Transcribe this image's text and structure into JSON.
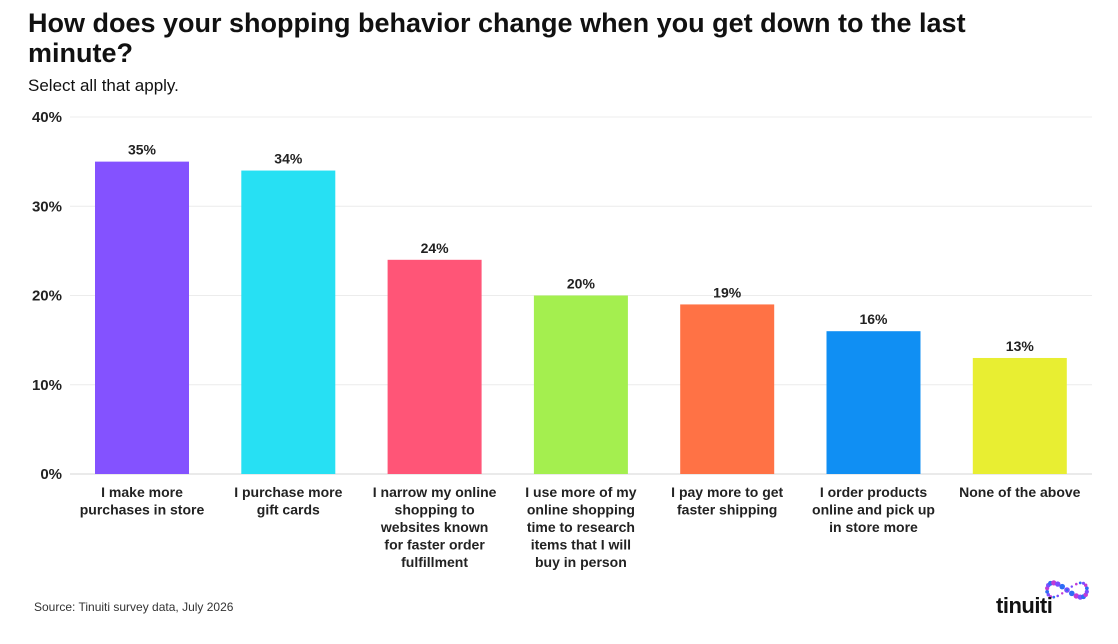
{
  "title": "How does your shopping behavior change when you get down to the last minute?",
  "subtitle": "Select all that apply.",
  "source": "Source: Tinuiti survey data, July 2026",
  "brand": {
    "wordmark": "tinuiti",
    "logo_icon": "dotted-infinity-logo-icon",
    "logo_colors": [
      "#7b4dff",
      "#2d6cf5",
      "#c13bd6"
    ]
  },
  "chart_data": {
    "type": "bar",
    "ylim": [
      0,
      40
    ],
    "y_ticks": [
      0,
      10,
      20,
      30,
      40
    ],
    "y_tick_labels": [
      "0%",
      "10%",
      "20%",
      "30%",
      "40%"
    ],
    "grid": true,
    "categories": [
      [
        "I make more",
        "purchases in store"
      ],
      [
        "I purchase more",
        "gift cards"
      ],
      [
        "I narrow my online",
        "shopping to",
        "websites known",
        "for faster order",
        "fulfillment"
      ],
      [
        "I use more of my",
        "online shopping",
        "time to research",
        "items that I will",
        "buy in person"
      ],
      [
        "I pay more to get",
        "faster shipping"
      ],
      [
        "I order products",
        "online and pick up",
        "in store more"
      ],
      [
        "None of the above"
      ]
    ],
    "values": [
      35,
      34,
      24,
      20,
      19,
      16,
      13
    ],
    "value_labels": [
      "35%",
      "34%",
      "24%",
      "20%",
      "19%",
      "16%",
      "13%"
    ],
    "colors": [
      "#8452ff",
      "#27e0f3",
      "#ff5577",
      "#a4ef4f",
      "#ff7245",
      "#108ff3",
      "#e8ee32"
    ]
  }
}
